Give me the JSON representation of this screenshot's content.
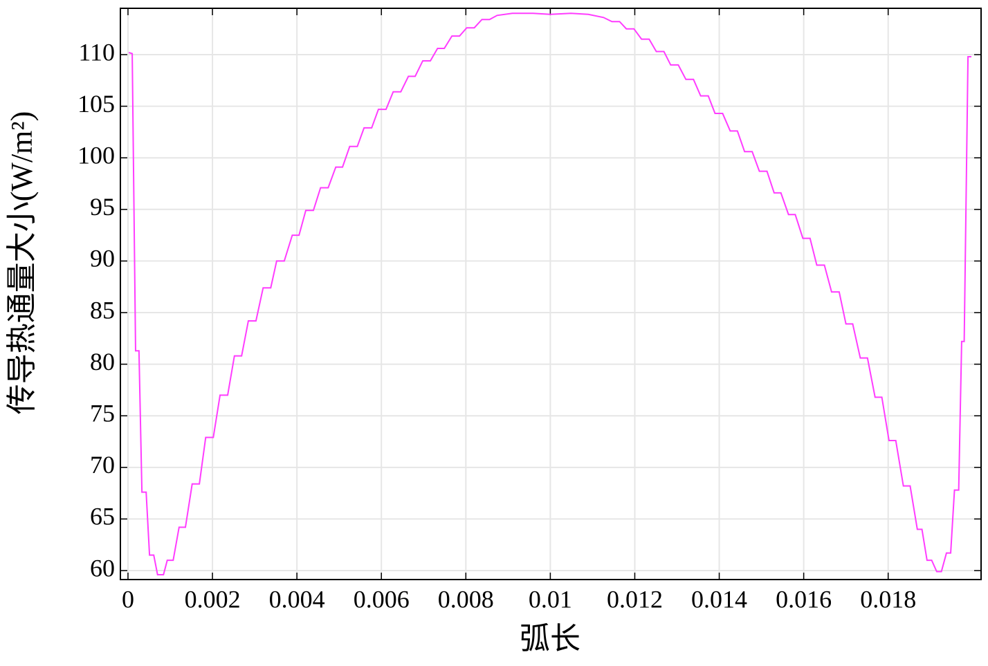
{
  "chart_data": {
    "type": "line",
    "xlabel": "弧长",
    "ylabel": "传导热通量大小(W/m²)",
    "xlim": [
      -0.00018,
      0.0202
    ],
    "ylim": [
      59.13,
      114.49
    ],
    "xticks": [
      0,
      0.002,
      0.004,
      0.006,
      0.008,
      0.01,
      0.012,
      0.014,
      0.016,
      0.018
    ],
    "yticks": [
      60,
      65,
      70,
      75,
      80,
      85,
      90,
      95,
      100,
      105,
      110
    ],
    "grid": true,
    "series": [
      {
        "color": "#ff3cff",
        "x": [
          2e-05,
          0.0001,
          0.00018,
          0.00026,
          0.00033,
          0.00043,
          0.00051,
          0.00061,
          0.0007,
          0.00084,
          0.00093,
          0.00107,
          0.00121,
          0.00136,
          0.00152,
          0.00169,
          0.00184,
          0.00202,
          0.00218,
          0.00236,
          0.00252,
          0.00269,
          0.00285,
          0.00303,
          0.0032,
          0.00338,
          0.00352,
          0.0037,
          0.00389,
          0.00405,
          0.00421,
          0.00439,
          0.00456,
          0.00474,
          0.00492,
          0.00508,
          0.00525,
          0.00543,
          0.00559,
          0.00577,
          0.00593,
          0.00611,
          0.00628,
          0.00646,
          0.00664,
          0.0068,
          0.00698,
          0.00716,
          0.00733,
          0.00749,
          0.00767,
          0.00785,
          0.00802,
          0.0082,
          0.00838,
          0.00856,
          0.00874,
          0.0091,
          0.00959,
          0.01,
          0.01049,
          0.0109,
          0.01126,
          0.01146,
          0.01164,
          0.0118,
          0.01198,
          0.01216,
          0.01234,
          0.01251,
          0.01269,
          0.01285,
          0.01303,
          0.01321,
          0.01339,
          0.01356,
          0.01374,
          0.0139,
          0.01408,
          0.01426,
          0.01443,
          0.0146,
          0.01478,
          0.01495,
          0.01513,
          0.0153,
          0.01546,
          0.01564,
          0.0158,
          0.01598,
          0.01615,
          0.01631,
          0.01649,
          0.01666,
          0.01684,
          0.017,
          0.01716,
          0.01734,
          0.01751,
          0.01769,
          0.01785,
          0.01802,
          0.01818,
          0.01836,
          0.01852,
          0.01869,
          0.0188,
          0.01892,
          0.01903,
          0.01915,
          0.01926,
          0.01938,
          0.01948,
          0.01957,
          0.01967,
          0.01974,
          0.0198,
          0.01989,
          0.01997
        ],
        "values": [
          110.2,
          110.1,
          81.3,
          81.3,
          67.6,
          67.6,
          61.5,
          61.5,
          59.6,
          59.6,
          61.0,
          61.0,
          64.2,
          64.2,
          68.4,
          68.4,
          72.9,
          72.9,
          77.0,
          77.0,
          80.8,
          80.8,
          84.2,
          84.2,
          87.4,
          87.4,
          90.0,
          90.0,
          92.5,
          92.5,
          94.9,
          94.9,
          97.1,
          97.1,
          99.1,
          99.1,
          101.1,
          101.1,
          102.9,
          102.9,
          104.7,
          104.7,
          106.4,
          106.4,
          107.9,
          107.9,
          109.4,
          109.4,
          110.6,
          110.6,
          111.8,
          111.8,
          112.6,
          112.6,
          113.4,
          113.4,
          113.8,
          114.0,
          114.0,
          113.9,
          114.0,
          113.9,
          113.6,
          113.2,
          113.2,
          112.5,
          112.5,
          111.5,
          111.5,
          110.3,
          110.3,
          109.0,
          109.0,
          107.6,
          107.6,
          106.0,
          106.0,
          104.3,
          104.3,
          102.6,
          102.6,
          100.6,
          100.6,
          98.7,
          98.7,
          96.6,
          96.6,
          94.5,
          94.5,
          92.2,
          92.2,
          89.6,
          89.6,
          87.0,
          87.0,
          83.9,
          83.9,
          80.6,
          80.6,
          76.8,
          76.8,
          72.6,
          72.6,
          68.2,
          68.2,
          64.0,
          64.0,
          61.0,
          61.0,
          59.9,
          59.9,
          61.7,
          61.7,
          67.8,
          67.8,
          82.2,
          82.2,
          109.8,
          109.8
        ]
      }
    ]
  }
}
